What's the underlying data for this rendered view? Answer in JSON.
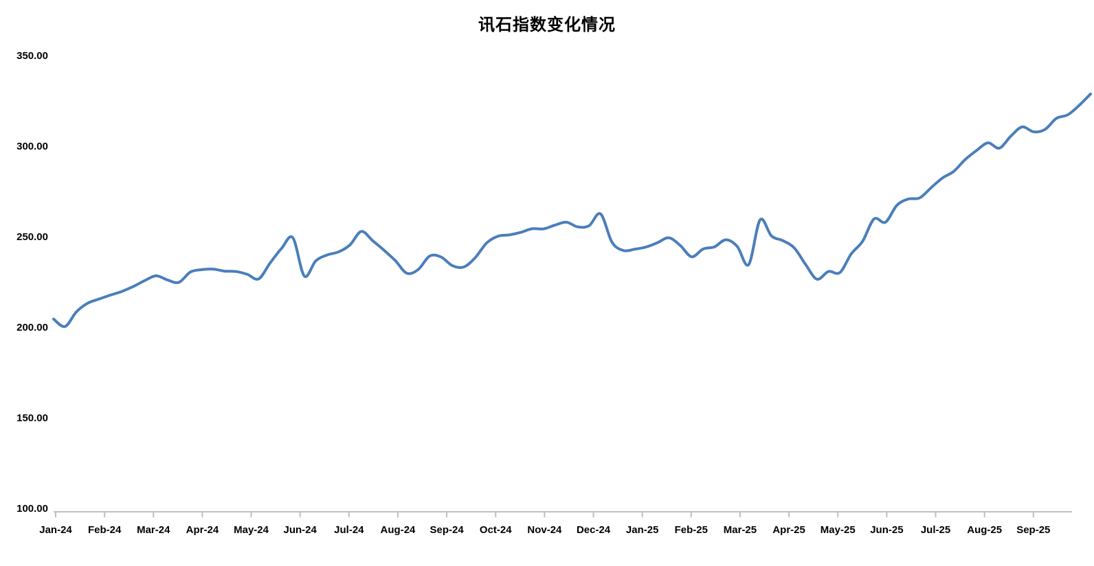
{
  "title": "讯石指数变化情况",
  "chart_data": {
    "type": "line",
    "title": "讯石指数变化情况",
    "series_name": "讯石指数",
    "sampling": "weekly",
    "x_tick_labels": [
      "Jan-24",
      "Feb-24",
      "Mar-24",
      "Apr-24",
      "May-24",
      "Jun-24",
      "Jul-24",
      "Aug-24",
      "Sep-24",
      "Oct-24",
      "Nov-24",
      "Dec-24",
      "Jan-25",
      "Feb-25",
      "Mar-25",
      "Apr-25",
      "May-25",
      "Jun-25",
      "Jul-25",
      "Aug-25",
      "Sep-25"
    ],
    "y_ticks": [
      "100.00",
      "150.00",
      "200.00",
      "250.00",
      "300.00",
      "350.00"
    ],
    "ylim": [
      100,
      350
    ],
    "grid": "off",
    "legend": "none",
    "smooth": true,
    "line_color": "#4a7ebb",
    "axis_color": "#bfbfbf",
    "text_color": "#000000",
    "values": [
      204.5,
      200.4,
      208.5,
      213.3,
      215.6,
      217.8,
      219.8,
      222.5,
      225.8,
      228.4,
      226.1,
      224.8,
      230.5,
      231.8,
      232.1,
      231.0,
      230.8,
      229.2,
      226.7,
      235.5,
      243.5,
      249.4,
      228.3,
      236.6,
      239.9,
      241.6,
      245.4,
      252.9,
      247.8,
      242.5,
      236.7,
      229.8,
      231.9,
      239.3,
      238.8,
      234.0,
      233.3,
      238.4,
      246.5,
      250.3,
      251.0,
      252.4,
      254.4,
      254.3,
      256.4,
      258.0,
      255.4,
      256.1,
      262.6,
      247.0,
      242.4,
      243.1,
      244.3,
      246.7,
      249.4,
      245.1,
      238.9,
      243.2,
      244.4,
      248.3,
      244.6,
      234.6,
      259.3,
      250.4,
      247.8,
      243.8,
      234.6,
      226.5,
      230.8,
      230.2,
      240.5,
      247.5,
      259.8,
      258.0,
      267.3,
      270.8,
      271.4,
      277.0,
      282.4,
      286.1,
      292.6,
      297.6,
      301.8,
      298.9,
      305.5,
      310.6,
      307.9,
      309.2,
      315.3,
      317.3,
      322.5,
      328.8
    ]
  }
}
